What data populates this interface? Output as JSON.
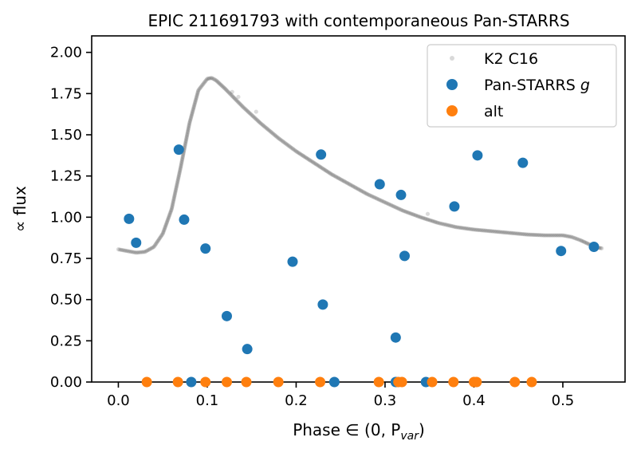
{
  "chart_data": {
    "type": "scatter",
    "title": "EPIC 211691793 with contemporaneous Pan-STARRS",
    "xlabel_text": "Phase ",
    "xlabel_math": "∈ (0, P",
    "xlabel_sub": "var",
    "xlabel_close": ")",
    "ylabel": "∝  flux",
    "xlim": [
      -0.03,
      0.57
    ],
    "ylim": [
      0.0,
      2.1
    ],
    "x_ticks": [
      0.0,
      0.1,
      0.2,
      0.3,
      0.4,
      0.5
    ],
    "x_tick_labels": [
      "0.0",
      "0.1",
      "0.2",
      "0.3",
      "0.4",
      "0.5"
    ],
    "y_ticks": [
      0.0,
      0.25,
      0.5,
      0.75,
      1.0,
      1.25,
      1.5,
      1.75,
      2.0
    ],
    "y_tick_labels": [
      "0.00",
      "0.25",
      "0.50",
      "0.75",
      "1.00",
      "1.25",
      "1.50",
      "1.75",
      "2.00"
    ],
    "legend_position": "top-right",
    "series": [
      {
        "name": "K2 C16",
        "color": "#000000",
        "marker": "small-translucent-dot",
        "curve": [
          [
            0.0,
            0.805
          ],
          [
            0.01,
            0.795
          ],
          [
            0.02,
            0.785
          ],
          [
            0.03,
            0.79
          ],
          [
            0.04,
            0.82
          ],
          [
            0.05,
            0.9
          ],
          [
            0.06,
            1.05
          ],
          [
            0.07,
            1.3
          ],
          [
            0.08,
            1.57
          ],
          [
            0.09,
            1.77
          ],
          [
            0.1,
            1.84
          ],
          [
            0.105,
            1.845
          ],
          [
            0.11,
            1.83
          ],
          [
            0.12,
            1.78
          ],
          [
            0.14,
            1.67
          ],
          [
            0.16,
            1.57
          ],
          [
            0.18,
            1.48
          ],
          [
            0.2,
            1.4
          ],
          [
            0.22,
            1.33
          ],
          [
            0.24,
            1.26
          ],
          [
            0.26,
            1.2
          ],
          [
            0.28,
            1.14
          ],
          [
            0.3,
            1.09
          ],
          [
            0.32,
            1.04
          ],
          [
            0.34,
            1.0
          ],
          [
            0.36,
            0.965
          ],
          [
            0.38,
            0.94
          ],
          [
            0.4,
            0.925
          ],
          [
            0.42,
            0.915
          ],
          [
            0.44,
            0.905
          ],
          [
            0.46,
            0.895
          ],
          [
            0.48,
            0.89
          ],
          [
            0.5,
            0.89
          ],
          [
            0.51,
            0.88
          ],
          [
            0.52,
            0.86
          ],
          [
            0.53,
            0.835
          ],
          [
            0.54,
            0.815
          ],
          [
            0.545,
            0.81
          ]
        ],
        "outliers": [
          [
            0.155,
            1.64
          ],
          [
            0.135,
            1.73
          ],
          [
            0.128,
            1.76
          ],
          [
            0.348,
            1.02
          ]
        ]
      },
      {
        "name": "Pan-STARRS g",
        "color": "#1f77b4",
        "marker": "circle",
        "points": [
          [
            0.012,
            0.99
          ],
          [
            0.02,
            0.845
          ],
          [
            0.068,
            1.41
          ],
          [
            0.074,
            0.985
          ],
          [
            0.098,
            0.81
          ],
          [
            0.122,
            0.4
          ],
          [
            0.145,
            0.2
          ],
          [
            0.196,
            0.73
          ],
          [
            0.228,
            1.38
          ],
          [
            0.23,
            0.47
          ],
          [
            0.294,
            1.2
          ],
          [
            0.312,
            0.27
          ],
          [
            0.318,
            1.135
          ],
          [
            0.322,
            0.765
          ],
          [
            0.378,
            1.065
          ],
          [
            0.404,
            1.375
          ],
          [
            0.455,
            1.33
          ],
          [
            0.498,
            0.795
          ],
          [
            0.535,
            0.82
          ],
          [
            0.082,
            0.0
          ],
          [
            0.243,
            0.0
          ],
          [
            0.312,
            0.0
          ],
          [
            0.346,
            0.0
          ]
        ]
      },
      {
        "name": "alt",
        "color": "#ff7f0e",
        "marker": "circle",
        "points": [
          [
            0.032,
            0.0
          ],
          [
            0.067,
            0.0
          ],
          [
            0.098,
            0.0
          ],
          [
            0.122,
            0.0
          ],
          [
            0.144,
            0.0
          ],
          [
            0.18,
            0.0
          ],
          [
            0.227,
            0.0
          ],
          [
            0.293,
            0.0
          ],
          [
            0.315,
            0.0
          ],
          [
            0.319,
            0.0
          ],
          [
            0.353,
            0.0
          ],
          [
            0.377,
            0.0
          ],
          [
            0.4,
            0.0
          ],
          [
            0.403,
            0.0
          ],
          [
            0.446,
            0.0
          ],
          [
            0.465,
            0.0
          ]
        ]
      }
    ],
    "legend": [
      {
        "label": "K2 C16",
        "series_index": 0
      },
      {
        "label": "Pan-STARRS ",
        "label_italic": "g",
        "series_index": 1
      },
      {
        "label": "alt",
        "series_index": 2
      }
    ]
  }
}
